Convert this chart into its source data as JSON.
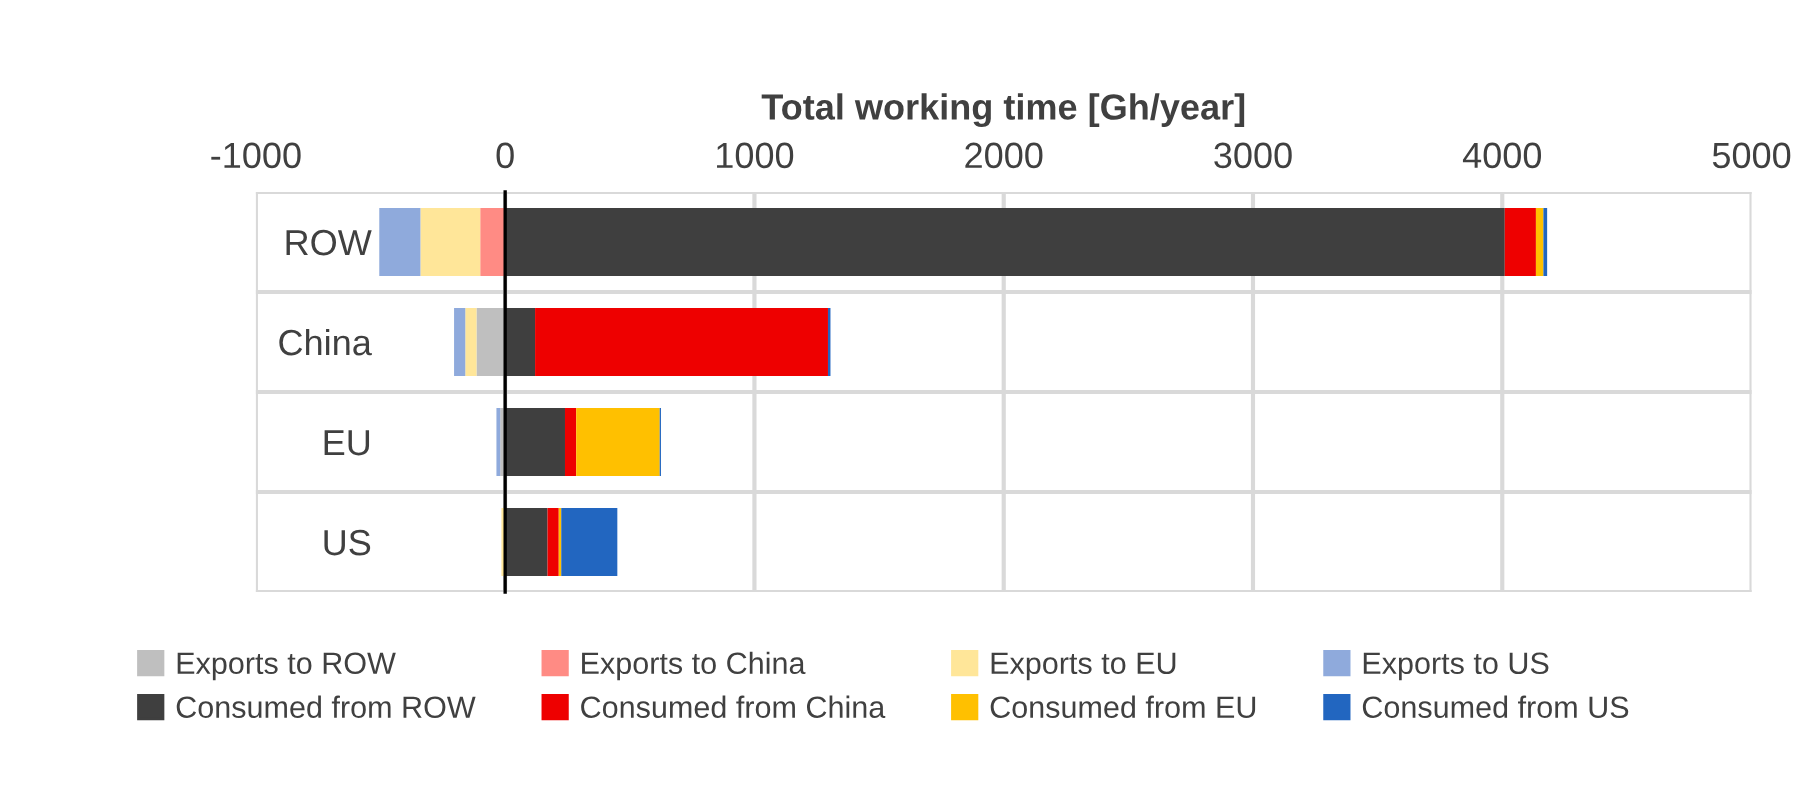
{
  "chart_data": {
    "type": "bar",
    "orientation": "horizontal",
    "stacked": true,
    "xlabel": "Total working time [Gh/year]",
    "categories": [
      "ROW",
      "China",
      "EU",
      "US"
    ],
    "series": [
      {
        "name": "Exports to ROW",
        "color": "#bfbfbf",
        "values": [
          0,
          -115,
          -20,
          null
        ]
      },
      {
        "name": "Exports to China",
        "color": "#ff8b84",
        "values": [
          -100,
          0,
          0,
          0
        ]
      },
      {
        "name": "Exports to EU",
        "color": "#ffe699",
        "values": [
          -240,
          -45,
          0,
          -15
        ]
      },
      {
        "name": "Exports to US",
        "color": "#8faadc",
        "values": [
          -165,
          -45,
          -15,
          0
        ]
      },
      {
        "name": "Consumed from ROW",
        "color": "#3f3f3f",
        "values": [
          4010,
          120,
          240,
          170
        ]
      },
      {
        "name": "Consumed from China",
        "color": "#ee0000",
        "values": [
          125,
          1175,
          45,
          45
        ]
      },
      {
        "name": "Consumed from EU",
        "color": "#ffc000",
        "values": [
          30,
          0,
          335,
          10
        ]
      },
      {
        "name": "Consumed from US",
        "color": "#2266c0",
        "values": [
          15,
          10,
          5,
          225
        ]
      }
    ],
    "xlim": [
      -1000,
      5000
    ],
    "xticks": [
      -1000,
      0,
      1000,
      2000,
      3000,
      4000,
      5000
    ],
    "grid": true,
    "legend": "bottom"
  }
}
